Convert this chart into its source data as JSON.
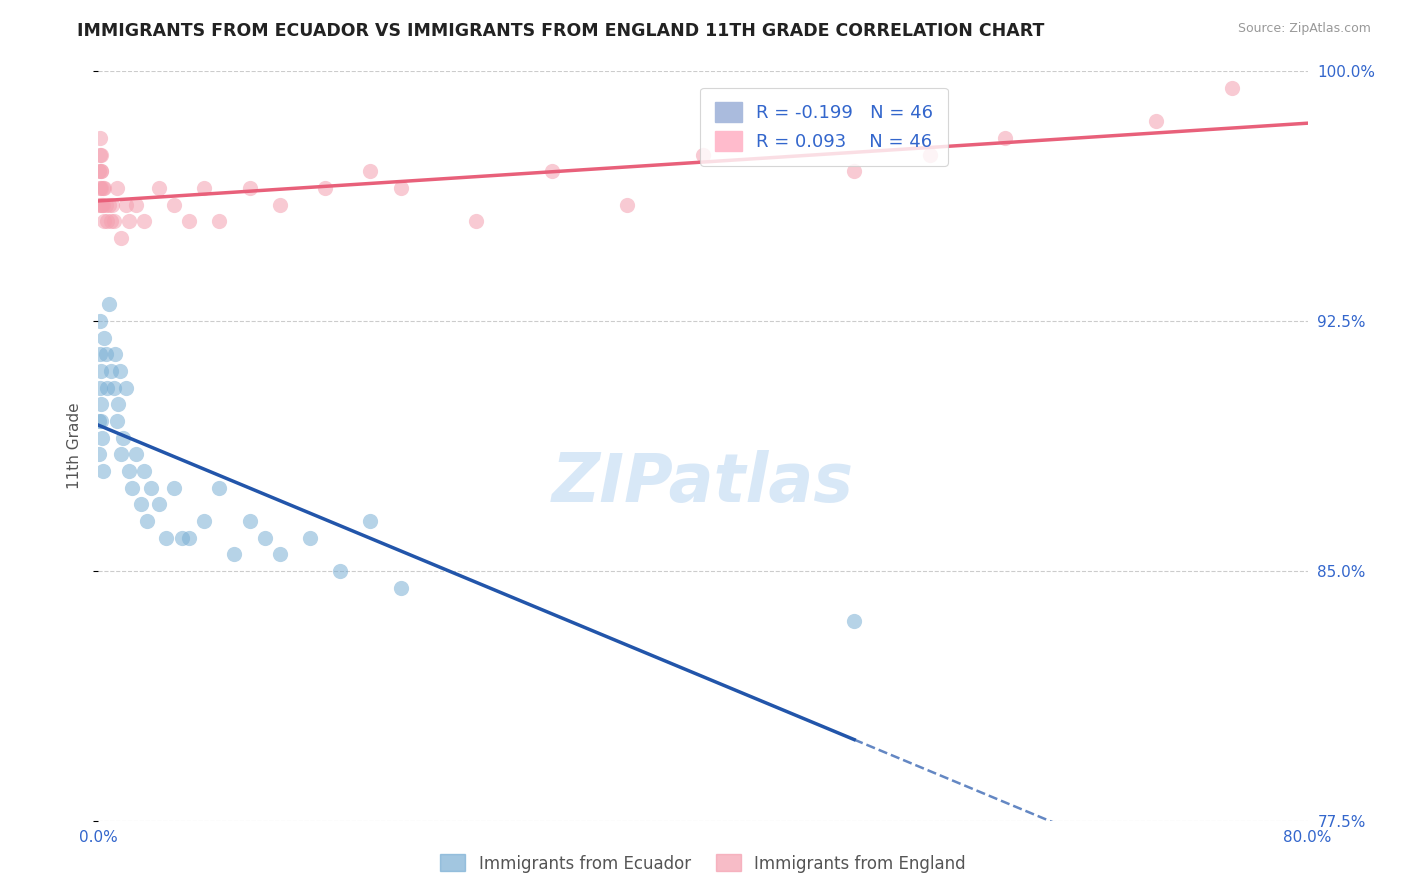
{
  "title": "IMMIGRANTS FROM ECUADOR VS IMMIGRANTS FROM ENGLAND 11TH GRADE CORRELATION CHART",
  "source": "Source: ZipAtlas.com",
  "ylabel": "11th Grade",
  "xlim": [
    0.0,
    80.0
  ],
  "ylim": [
    77.5,
    100.0
  ],
  "xticks": [
    0.0,
    20.0,
    40.0,
    60.0,
    80.0
  ],
  "yticks": [
    77.5,
    85.0,
    92.5,
    100.0
  ],
  "ecuador_color": "#7BAFD4",
  "england_color": "#F4A0B0",
  "ecuador_R": -0.199,
  "ecuador_N": 46,
  "england_R": 0.093,
  "england_N": 46,
  "ecuador_line_color": "#2255AA",
  "england_line_color": "#E8607A",
  "background_color": "#FFFFFF",
  "grid_color": "#CCCCCC",
  "watermark": "ZIPatlas",
  "ecuador_x": [
    0.05,
    0.05,
    0.1,
    0.1,
    0.1,
    0.15,
    0.2,
    0.2,
    0.25,
    0.3,
    0.4,
    0.5,
    0.6,
    0.7,
    0.8,
    1.0,
    1.1,
    1.2,
    1.3,
    1.4,
    1.5,
    1.6,
    1.8,
    2.0,
    2.2,
    2.5,
    2.8,
    3.0,
    3.2,
    3.5,
    4.0,
    4.5,
    5.0,
    5.5,
    6.0,
    7.0,
    8.0,
    9.0,
    10.0,
    11.0,
    12.0,
    14.0,
    16.0,
    18.0,
    20.0,
    50.0
  ],
  "ecuador_y": [
    89.5,
    88.5,
    92.5,
    91.5,
    90.5,
    90.0,
    91.0,
    89.5,
    89.0,
    88.0,
    92.0,
    91.5,
    90.5,
    93.0,
    91.0,
    90.5,
    91.5,
    89.5,
    90.0,
    91.0,
    88.5,
    89.0,
    90.5,
    88.0,
    87.5,
    88.5,
    87.0,
    88.0,
    86.5,
    87.5,
    87.0,
    86.0,
    87.5,
    86.0,
    86.0,
    86.5,
    87.5,
    85.5,
    86.5,
    86.0,
    85.5,
    86.0,
    85.0,
    86.5,
    84.5,
    83.5
  ],
  "england_x": [
    0.05,
    0.05,
    0.1,
    0.1,
    0.1,
    0.15,
    0.15,
    0.2,
    0.2,
    0.2,
    0.25,
    0.3,
    0.3,
    0.35,
    0.4,
    0.5,
    0.6,
    0.7,
    0.8,
    0.9,
    1.0,
    1.2,
    1.5,
    1.8,
    2.0,
    2.5,
    3.0,
    4.0,
    5.0,
    6.0,
    7.0,
    8.0,
    10.0,
    12.0,
    15.0,
    18.0,
    20.0,
    25.0,
    30.0,
    35.0,
    40.0,
    50.0,
    55.0,
    60.0,
    70.0,
    75.0
  ],
  "england_y": [
    97.0,
    96.0,
    98.0,
    97.5,
    96.5,
    97.0,
    96.0,
    96.5,
    97.0,
    97.5,
    96.0,
    96.5,
    96.0,
    95.5,
    96.5,
    96.0,
    95.5,
    96.0,
    95.5,
    96.0,
    95.5,
    96.5,
    95.0,
    96.0,
    95.5,
    96.0,
    95.5,
    96.5,
    96.0,
    95.5,
    96.5,
    95.5,
    96.5,
    96.0,
    96.5,
    97.0,
    96.5,
    95.5,
    97.0,
    96.0,
    97.5,
    97.0,
    97.5,
    98.0,
    98.5,
    99.5
  ]
}
